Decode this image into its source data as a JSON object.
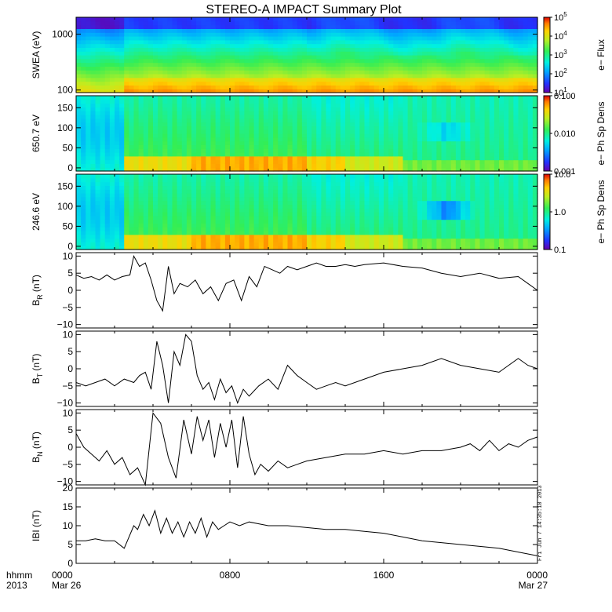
{
  "title": "STEREO-A IMPACT Summary Plot",
  "footer": {
    "time_label": "hhmm",
    "year_label": "2013",
    "stamp": "Fri Jun  7 14:35:18 2013"
  },
  "colors": {
    "line": "#000000",
    "frame": "#000000"
  },
  "chart_data": [
    {
      "id": "swea",
      "type": "heatmap",
      "ylabel": "SWEA (eV)",
      "y_scale": "log",
      "ylim": [
        90,
        2000
      ],
      "yticks": [
        {
          "v": 100,
          "label": "100"
        },
        {
          "v": 1000,
          "label": "1000"
        }
      ],
      "x_range_hours": [
        0,
        24
      ],
      "colorbar": {
        "label": "e− Flux",
        "scale": "log",
        "range": [
          10,
          100000
        ],
        "ticks": [
          {
            "v": 10,
            "base": "10",
            "exp": "1"
          },
          {
            "v": 100,
            "base": "10",
            "exp": "2"
          },
          {
            "v": 1000,
            "base": "10",
            "exp": "3"
          },
          {
            "v": 10000,
            "base": "10",
            "exp": "4"
          },
          {
            "v": 100000,
            "base": "10",
            "exp": "5"
          }
        ]
      }
    },
    {
      "id": "pad650",
      "type": "heatmap",
      "ylabel": "650.7 eV",
      "ylim": [
        -8,
        180
      ],
      "yticks": [
        {
          "v": 0,
          "label": "0"
        },
        {
          "v": 50,
          "label": "50"
        },
        {
          "v": 100,
          "label": "100"
        },
        {
          "v": 150,
          "label": "150"
        }
      ],
      "x_range_hours": [
        0,
        24
      ],
      "colorbar": {
        "label": "e− Ph Sp Dens",
        "scale": "log",
        "range": [
          0.001,
          0.1
        ],
        "ticks": [
          {
            "v": 0.001,
            "label": "0.001"
          },
          {
            "v": 0.01,
            "label": "0.010"
          },
          {
            "v": 0.1,
            "label": "0.100"
          }
        ]
      }
    },
    {
      "id": "pad246",
      "type": "heatmap",
      "ylabel": "246.6 eV",
      "ylim": [
        -8,
        180
      ],
      "yticks": [
        {
          "v": 0,
          "label": "0"
        },
        {
          "v": 50,
          "label": "50"
        },
        {
          "v": 100,
          "label": "100"
        },
        {
          "v": 150,
          "label": "150"
        }
      ],
      "x_range_hours": [
        0,
        24
      ],
      "colorbar": {
        "label": "e− Ph Sp Dens",
        "scale": "log",
        "range": [
          0.1,
          10
        ],
        "ticks": [
          {
            "v": 0.1,
            "label": "0.1"
          },
          {
            "v": 1,
            "label": "1.0"
          },
          {
            "v": 10,
            "label": "10.0"
          }
        ]
      }
    },
    {
      "id": "br",
      "type": "line",
      "ylabel": {
        "base": "B",
        "sub": "R",
        "rest": " (nT)"
      },
      "ylim": [
        -11,
        11
      ],
      "yticks": [
        {
          "v": -10,
          "label": "−10"
        },
        {
          "v": -5,
          "label": "−5"
        },
        {
          "v": 0,
          "label": "0"
        },
        {
          "v": 5,
          "label": "5"
        },
        {
          "v": 10,
          "label": "10"
        }
      ],
      "x": [
        0,
        0.4,
        0.8,
        1.2,
        1.6,
        2.0,
        2.4,
        2.8,
        3.0,
        3.3,
        3.6,
        3.9,
        4.2,
        4.5,
        4.8,
        5.1,
        5.4,
        5.8,
        6.2,
        6.6,
        7.0,
        7.4,
        7.8,
        8.2,
        8.6,
        9.0,
        9.4,
        9.8,
        10.2,
        10.6,
        11,
        11.5,
        12,
        12.5,
        13,
        13.5,
        14,
        14.5,
        15,
        16,
        17,
        18,
        19,
        20,
        21,
        22,
        23,
        23.5,
        24
      ],
      "y": [
        4.5,
        3.5,
        4,
        3,
        4.5,
        3,
        4,
        4.5,
        10,
        7,
        8,
        3,
        -3,
        -6,
        7,
        -1,
        2,
        1,
        3,
        -1,
        1,
        -3,
        2,
        3,
        -3,
        4,
        1,
        7,
        6,
        5,
        7,
        6,
        7,
        8,
        7,
        7,
        7.5,
        7,
        7.5,
        8,
        7,
        6.5,
        5,
        4,
        5,
        3.5,
        4,
        2,
        0
      ]
    },
    {
      "id": "bt",
      "type": "line",
      "ylabel": {
        "base": "B",
        "sub": "T",
        "rest": " (nT)"
      },
      "ylim": [
        -11,
        11
      ],
      "yticks": [
        {
          "v": -10,
          "label": "−10"
        },
        {
          "v": -5,
          "label": "−5"
        },
        {
          "v": 0,
          "label": "0"
        },
        {
          "v": 5,
          "label": "5"
        },
        {
          "v": 10,
          "label": "10"
        }
      ],
      "x": [
        0,
        0.5,
        1,
        1.5,
        2,
        2.5,
        3,
        3.3,
        3.6,
        3.9,
        4.2,
        4.5,
        4.8,
        5.1,
        5.4,
        5.7,
        6.0,
        6.3,
        6.6,
        6.9,
        7.2,
        7.5,
        7.8,
        8.1,
        8.4,
        8.7,
        9,
        9.5,
        10,
        10.5,
        11,
        11.5,
        12,
        12.5,
        13,
        13.5,
        14,
        15,
        16,
        17,
        18,
        19,
        20,
        21,
        22,
        23,
        23.5,
        24
      ],
      "y": [
        -4,
        -5,
        -4,
        -3,
        -5,
        -3,
        -4,
        -2,
        -1,
        -6,
        8,
        1,
        -10,
        5,
        1,
        10,
        8,
        -2,
        -6,
        -4,
        -9,
        -3,
        -7,
        -5,
        -10,
        -6,
        -8,
        -5,
        -3,
        -6,
        1,
        -2,
        -4,
        -6,
        -5,
        -4,
        -5,
        -3,
        -1,
        0,
        1,
        3,
        1,
        0,
        -1,
        3,
        1,
        0
      ]
    },
    {
      "id": "bn",
      "type": "line",
      "ylabel": {
        "base": "B",
        "sub": "N",
        "rest": " (nT)"
      },
      "ylim": [
        -11,
        11
      ],
      "yticks": [
        {
          "v": -10,
          "label": "−10"
        },
        {
          "v": -5,
          "label": "−5"
        },
        {
          "v": 0,
          "label": "0"
        },
        {
          "v": 5,
          "label": "5"
        },
        {
          "v": 10,
          "label": "10"
        }
      ],
      "x": [
        0,
        0.4,
        0.8,
        1.2,
        1.6,
        2.0,
        2.4,
        2.8,
        3.2,
        3.6,
        4.0,
        4.4,
        4.8,
        5.2,
        5.6,
        6.0,
        6.3,
        6.6,
        6.9,
        7.2,
        7.5,
        7.8,
        8.1,
        8.4,
        8.7,
        9.0,
        9.3,
        9.6,
        10,
        10.5,
        11,
        11.5,
        12,
        13,
        14,
        15,
        16,
        17,
        18,
        19,
        20,
        20.5,
        21,
        21.5,
        22,
        22.5,
        23,
        23.5,
        24
      ],
      "y": [
        4,
        0,
        -2,
        -4,
        -1,
        -5,
        -3,
        -8,
        -6,
        -11,
        10,
        7,
        -3,
        -9,
        8,
        -2,
        9,
        2,
        8,
        -3,
        7,
        0,
        8,
        -6,
        9,
        -2,
        -8,
        -5,
        -7,
        -4,
        -6,
        -5,
        -4,
        -3,
        -2,
        -2,
        -1,
        -2,
        -1,
        -1,
        0,
        1,
        -1,
        2,
        -1,
        1,
        0,
        2,
        3
      ]
    },
    {
      "id": "bmag",
      "type": "line",
      "ylabel": "IBI (nT)",
      "ylim": [
        0,
        20
      ],
      "yticks": [
        {
          "v": 0,
          "label": "0"
        },
        {
          "v": 5,
          "label": "5"
        },
        {
          "v": 10,
          "label": "10"
        },
        {
          "v": 15,
          "label": "15"
        },
        {
          "v": 20,
          "label": "20"
        }
      ],
      "x": [
        0,
        0.5,
        1,
        1.5,
        2,
        2.5,
        3,
        3.2,
        3.5,
        3.8,
        4.1,
        4.4,
        4.7,
        5.0,
        5.3,
        5.6,
        5.9,
        6.2,
        6.5,
        6.8,
        7.1,
        7.4,
        7.7,
        8.0,
        8.5,
        9,
        9.5,
        10,
        11,
        12,
        13,
        14,
        15,
        16,
        17,
        18,
        19,
        20,
        21,
        22,
        23,
        24
      ],
      "y": [
        6,
        6,
        6.5,
        6,
        6,
        4,
        10,
        9,
        13,
        10,
        14,
        8,
        12,
        8,
        11,
        7,
        11,
        8,
        12,
        7,
        11,
        9,
        10,
        11,
        10,
        11,
        10.5,
        10,
        10,
        9.5,
        9,
        9,
        8.5,
        8,
        7,
        6,
        5.5,
        5,
        4.5,
        4,
        3,
        2
      ]
    }
  ],
  "x_axis": {
    "ticks": [
      {
        "hour": 0,
        "label": "0000",
        "date": "Mar 26"
      },
      {
        "hour": 8,
        "label": "0800",
        "date": ""
      },
      {
        "hour": 16,
        "label": "1600",
        "date": ""
      },
      {
        "hour": 24,
        "label": "0000",
        "date": "Mar 27"
      }
    ]
  }
}
